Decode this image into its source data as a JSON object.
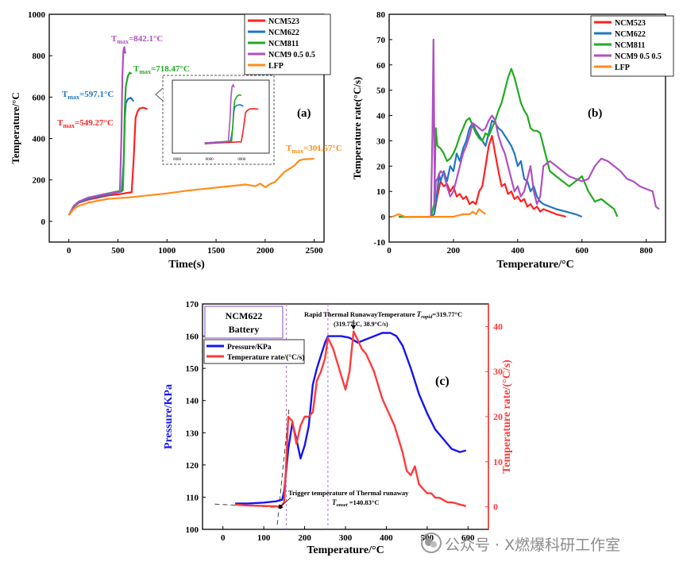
{
  "chart_data": [
    {
      "id": "a",
      "type": "line",
      "panel_label": "(a)",
      "xlabel": "Time(s)",
      "ylabel": "Temperature/°C",
      "xlim": [
        -200,
        2600
      ],
      "ylim": [
        -100,
        1000
      ],
      "xticks": [
        0,
        500,
        1000,
        1500,
        2000,
        2500
      ],
      "yticks": [
        0,
        200,
        400,
        600,
        800,
        1000
      ],
      "legend_position": "top-right",
      "series": [
        {
          "name": "NCM523",
          "color": "#ff2020",
          "x": [
            0,
            50,
            100,
            200,
            300,
            400,
            500,
            600,
            640,
            660,
            680,
            700,
            720,
            760,
            800
          ],
          "y": [
            30,
            70,
            90,
            105,
            115,
            125,
            130,
            138,
            140,
            300,
            500,
            530,
            545,
            549.27,
            542
          ]
        },
        {
          "name": "NCM622",
          "color": "#1f77c0",
          "x": [
            0,
            50,
            100,
            200,
            300,
            400,
            500,
            540,
            560,
            570,
            580,
            600,
            630,
            660
          ],
          "y": [
            30,
            70,
            90,
            110,
            120,
            130,
            140,
            145,
            300,
            500,
            570,
            590,
            597.1,
            580
          ]
        },
        {
          "name": "NCM811",
          "color": "#22aa22",
          "x": [
            0,
            50,
            100,
            200,
            300,
            400,
            500,
            550,
            560,
            570,
            580,
            600,
            620,
            640
          ],
          "y": [
            30,
            70,
            95,
            115,
            125,
            135,
            145,
            150,
            300,
            550,
            650,
            700,
            718.47,
            712
          ]
        },
        {
          "name": "NCM9 0.5 0.5",
          "color": "#b050c0",
          "x": [
            0,
            50,
            100,
            200,
            300,
            400,
            500,
            520,
            535,
            545,
            555,
            565,
            575
          ],
          "y": [
            30,
            75,
            95,
            115,
            125,
            135,
            140,
            145,
            400,
            700,
            820,
            842.1,
            810
          ]
        },
        {
          "name": "LFP",
          "color": "#ff8c1a",
          "x": [
            0,
            50,
            100,
            200,
            300,
            400,
            500,
            600,
            800,
            1000,
            1200,
            1400,
            1600,
            1800,
            1900,
            1950,
            2000,
            2050,
            2100,
            2150,
            2200,
            2250,
            2300,
            2350,
            2400,
            2500
          ],
          "y": [
            30,
            60,
            75,
            90,
            100,
            108,
            112,
            115,
            125,
            135,
            148,
            158,
            168,
            178,
            170,
            182,
            165,
            180,
            190,
            215,
            240,
            255,
            270,
            295,
            300,
            301.57
          ]
        }
      ],
      "annotations": [
        {
          "base": "T",
          "sub": "max",
          "text": "=842.1°C",
          "color": "#b050c0"
        },
        {
          "base": "T",
          "sub": "max",
          "text": "=718.47°C",
          "color": "#22aa22"
        },
        {
          "base": "T",
          "sub": "max",
          "text": "=597.1°C",
          "color": "#1f77c0"
        },
        {
          "base": "T",
          "sub": "max",
          "text": "=549.27°C",
          "color": "#ff2020"
        },
        {
          "base": "T",
          "sub": "max",
          "text": "=301.57°C",
          "color": "#ff8c1a"
        }
      ],
      "inset": {
        "xlim": [
          0,
          900
        ],
        "ylim": [
          0,
          900
        ],
        "xticks": [
          0,
          300,
          600
        ],
        "yticks": [],
        "xtick_labels": [
          "0000",
          "0000",
          "0000"
        ]
      }
    },
    {
      "id": "b",
      "type": "line",
      "panel_label": "(b)",
      "xlabel": "Temperature/°C",
      "ylabel": "Temperature rate(°C/s)",
      "xlim": [
        0,
        860
      ],
      "ylim": [
        -10,
        80
      ],
      "xticks": [
        0,
        200,
        400,
        600,
        800
      ],
      "yticks": [
        -10,
        0,
        10,
        20,
        30,
        40,
        50,
        60,
        70,
        80
      ],
      "legend_position": "top-right",
      "series": [
        {
          "name": "NCM523",
          "color": "#ff2020",
          "x": [
            30,
            80,
            130,
            140,
            150,
            160,
            170,
            180,
            190,
            200,
            210,
            220,
            230,
            240,
            250,
            260,
            270,
            280,
            290,
            300,
            310,
            320,
            330,
            340,
            350,
            360,
            370,
            380,
            390,
            400,
            410,
            420,
            430,
            440,
            450,
            460,
            470,
            480,
            500,
            520,
            550
          ],
          "y": [
            0,
            0,
            0,
            1,
            8,
            14,
            12,
            13,
            10,
            12,
            8,
            9,
            7,
            8,
            5,
            6,
            5,
            10,
            12,
            20,
            28,
            32,
            25,
            18,
            12,
            13,
            9,
            10,
            7,
            8,
            6,
            7,
            4,
            5,
            3,
            4,
            2,
            3,
            2,
            1,
            0
          ]
        },
        {
          "name": "NCM622",
          "color": "#1f77c0",
          "x": [
            30,
            80,
            130,
            140,
            150,
            155,
            160,
            170,
            180,
            190,
            200,
            210,
            220,
            230,
            240,
            250,
            260,
            270,
            280,
            290,
            300,
            310,
            320,
            330,
            340,
            350,
            360,
            370,
            380,
            390,
            400,
            410,
            420,
            430,
            440,
            450,
            460,
            470,
            480,
            500,
            520,
            550,
            580,
            600
          ],
          "y": [
            0,
            0,
            0,
            1,
            10,
            17,
            14,
            18,
            14,
            20,
            18,
            25,
            22,
            27,
            30,
            35,
            37,
            34,
            32,
            30,
            28,
            33,
            38,
            37,
            35,
            34,
            32,
            30,
            28,
            25,
            20,
            22,
            15,
            14,
            10,
            12,
            8,
            6,
            5,
            4,
            3,
            2,
            1,
            0
          ]
        },
        {
          "name": "NCM811",
          "color": "#22aa22",
          "x": [
            30,
            80,
            130,
            140,
            145,
            150,
            160,
            170,
            180,
            190,
            200,
            210,
            220,
            230,
            240,
            250,
            260,
            270,
            280,
            290,
            300,
            310,
            320,
            330,
            340,
            350,
            360,
            370,
            380,
            390,
            400,
            410,
            420,
            430,
            440,
            450,
            460,
            470,
            480,
            500,
            520,
            540,
            560,
            580,
            600,
            620,
            640,
            660,
            680,
            700,
            710
          ],
          "y": [
            0,
            0,
            0,
            5,
            35,
            28,
            27,
            25,
            22,
            23,
            25,
            28,
            32,
            35,
            38,
            39,
            36,
            33,
            31,
            30,
            33,
            32,
            35,
            38,
            42,
            45,
            50,
            55,
            58.5,
            55,
            50,
            45,
            42,
            40,
            35,
            34,
            34,
            33,
            28,
            18,
            16,
            14,
            12,
            14,
            16,
            10,
            6,
            7,
            5,
            3,
            0
          ]
        },
        {
          "name": "NCM9 0.5 0.5",
          "color": "#b050c0",
          "x": [
            130,
            135,
            138,
            140,
            142,
            145,
            150,
            160,
            170,
            180,
            190,
            200,
            210,
            220,
            230,
            240,
            250,
            260,
            270,
            280,
            290,
            300,
            310,
            320,
            330,
            340,
            350,
            360,
            370,
            380,
            390,
            400,
            410,
            420,
            430,
            440,
            450,
            460,
            470,
            480,
            500,
            520,
            540,
            560,
            580,
            600,
            620,
            640,
            660,
            680,
            700,
            720,
            740,
            760,
            780,
            800,
            820,
            830,
            840
          ],
          "y": [
            0,
            35,
            70,
            36,
            5,
            14,
            15,
            18,
            17,
            12,
            8,
            10,
            15,
            20,
            25,
            28,
            32,
            37,
            36,
            35,
            34,
            35,
            38,
            40,
            38,
            32,
            28,
            25,
            20,
            15,
            10,
            12,
            8,
            10,
            15,
            20,
            10,
            5,
            8,
            20,
            22,
            20,
            18,
            16,
            15,
            14,
            15,
            20,
            23,
            22,
            20,
            18,
            15,
            14,
            12,
            11,
            10,
            4,
            3
          ]
        },
        {
          "name": "LFP",
          "color": "#ff8c1a",
          "x": [
            10,
            30,
            50,
            80,
            100,
            130,
            150,
            180,
            200,
            230,
            250,
            260,
            270,
            280,
            290,
            300
          ],
          "y": [
            0,
            1,
            0,
            0,
            0,
            0,
            0,
            0,
            0,
            1,
            1,
            2,
            1,
            3,
            2,
            1
          ]
        }
      ]
    },
    {
      "id": "c",
      "type": "line",
      "panel_label": "(c)",
      "xlabel": "Temperature/°C",
      "ylabel": "Pressure/KPa",
      "y2label": "Temperature rate/(°C/s)",
      "xlim": [
        -50,
        650
      ],
      "ylim": [
        100,
        170
      ],
      "y2lim": [
        -5,
        45
      ],
      "xticks": [
        0,
        100,
        200,
        300,
        400,
        500,
        600
      ],
      "yticks": [
        100,
        110,
        120,
        130,
        140,
        150,
        160,
        170
      ],
      "y2ticks": [
        0,
        10,
        20,
        30,
        40
      ],
      "legend_position": "top-left",
      "box_title": [
        "NCM622",
        "Battery"
      ],
      "vlines": [
        155,
        257
      ],
      "series": [
        {
          "name": "Pressure/KPa",
          "color": "#1515f0",
          "axis": "left",
          "x": [
            30,
            60,
            100,
            130,
            145,
            150,
            160,
            170,
            180,
            190,
            200,
            210,
            220,
            230,
            240,
            250,
            257,
            270,
            290,
            310,
            330,
            350,
            370,
            390,
            410,
            425,
            440,
            460,
            480,
            500,
            520,
            540,
            560,
            580,
            595
          ],
          "y": [
            108,
            108,
            108.3,
            108.7,
            109.2,
            112,
            125,
            133,
            128,
            122,
            126,
            132,
            145,
            150,
            154,
            158,
            160,
            160,
            160,
            159.5,
            158,
            159,
            160,
            161,
            161,
            160,
            157,
            150,
            142,
            136,
            131,
            128,
            125,
            124,
            124.5
          ]
        },
        {
          "name": "Temperature rate/(°C/s)",
          "color": "#ff3b3b",
          "axis": "right",
          "x": [
            30,
            60,
            100,
            130,
            140.83,
            150,
            155,
            160,
            170,
            180,
            190,
            200,
            210,
            220,
            230,
            240,
            250,
            257,
            270,
            280,
            290,
            300,
            310,
            319.77,
            330,
            340,
            350,
            360,
            370,
            380,
            390,
            400,
            410,
            420,
            430,
            440,
            450,
            460,
            470,
            480,
            490,
            500,
            510,
            520,
            530,
            540,
            550,
            560,
            570,
            580,
            590,
            595
          ],
          "y": [
            0.5,
            0.3,
            0.2,
            0.1,
            0,
            1,
            10,
            20,
            19,
            14,
            18,
            20,
            20,
            21,
            28,
            30,
            33,
            37.5,
            35,
            32,
            29,
            26,
            30,
            38.9,
            37,
            35,
            34,
            32,
            30,
            27,
            24,
            22,
            20,
            18,
            15,
            12,
            8,
            7,
            9,
            5,
            4,
            3,
            3,
            2,
            2,
            1.5,
            1,
            1,
            0.8,
            0.5,
            0.3,
            0.1
          ]
        }
      ],
      "annotations": {
        "rapid_title": "Rapid Thermal RunawayTemperature",
        "rapid_var": "T",
        "rapid_sub": "rapid",
        "rapid_value": "=319.77°C",
        "rapid_point": "(319.77°C,   38.9°C/s)",
        "trigger_title": "Trigger temperature of Thermal runaway",
        "trigger_var": "T",
        "trigger_sub": "onset",
        "trigger_value": "=140.83°C"
      }
    }
  ],
  "watermark": {
    "text": "公众号 · X燃爆科研工作室",
    "logo_icon": "wechat-logo-icon"
  }
}
